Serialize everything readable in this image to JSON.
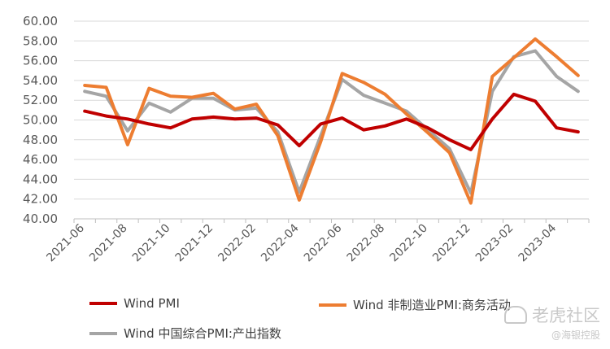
{
  "chart_data": {
    "type": "line",
    "title": "",
    "xlabel": "",
    "ylabel": "",
    "ylim": [
      40,
      60
    ],
    "yticks": [
      "40.00",
      "42.00",
      "44.00",
      "46.00",
      "48.00",
      "50.00",
      "52.00",
      "54.00",
      "56.00",
      "58.00",
      "60.00"
    ],
    "x": [
      "2021-06",
      "2021-07",
      "2021-08",
      "2021-09",
      "2021-10",
      "2021-11",
      "2021-12",
      "2022-01",
      "2022-02",
      "2022-03",
      "2022-04",
      "2022-05",
      "2022-06",
      "2022-07",
      "2022-08",
      "2022-09",
      "2022-10",
      "2022-11",
      "2022-12",
      "2023-01",
      "2023-02",
      "2023-03",
      "2023-04",
      "2023-05"
    ],
    "xtick_labels": [
      "2021-06",
      "2021-08",
      "2021-10",
      "2021-12",
      "2022-02",
      "2022-04",
      "2022-06",
      "2022-08",
      "2022-10",
      "2022-12",
      "2023-02",
      "2023-04"
    ],
    "grid": true,
    "legend_position": "bottom",
    "series": [
      {
        "name": "Wind PMI",
        "color": "#c00000",
        "values": [
          50.9,
          50.4,
          50.1,
          49.6,
          49.2,
          50.1,
          50.3,
          50.1,
          50.2,
          49.5,
          47.4,
          49.6,
          50.2,
          49.0,
          49.4,
          50.1,
          49.2,
          48.0,
          47.0,
          50.1,
          52.6,
          51.9,
          49.2,
          48.8
        ]
      },
      {
        "name": "Wind 非制造业PMI:商务活动",
        "color": "#ed7d31",
        "values": [
          53.5,
          53.3,
          47.5,
          53.2,
          52.4,
          52.3,
          52.7,
          51.1,
          51.6,
          48.4,
          41.9,
          47.8,
          54.7,
          53.8,
          52.6,
          50.6,
          48.7,
          46.7,
          41.6,
          54.4,
          56.3,
          58.2,
          56.4,
          54.5
        ]
      },
      {
        "name": "Wind 中国综合PMI:产出指数",
        "color": "#a5a5a5",
        "values": [
          52.9,
          52.4,
          48.9,
          51.7,
          50.8,
          52.2,
          52.2,
          51.0,
          51.2,
          48.8,
          42.7,
          48.4,
          54.1,
          52.5,
          51.7,
          50.9,
          49.0,
          47.1,
          42.6,
          52.9,
          56.4,
          57.0,
          54.4,
          52.9
        ]
      }
    ]
  },
  "watermark": {
    "main": "老虎社区",
    "sub": "@海银控股"
  }
}
